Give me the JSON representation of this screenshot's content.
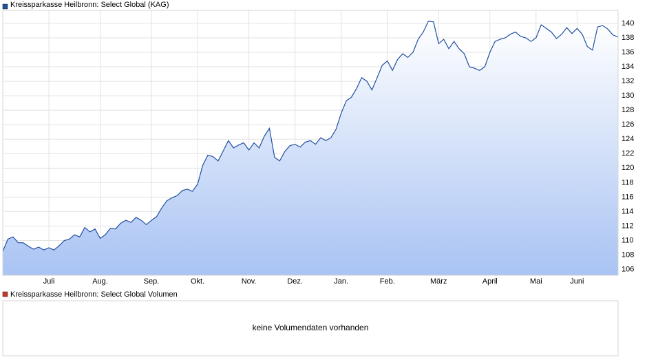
{
  "chart_data": [
    {
      "type": "line",
      "legend": "Kreissparkasse Heilbronn: Select Global (KAG)",
      "categories": [
        null,
        null,
        null,
        null,
        null,
        null,
        null,
        null,
        null,
        "Juli",
        null,
        null,
        null,
        null,
        null,
        null,
        null,
        null,
        null,
        "Aug.",
        null,
        null,
        null,
        null,
        null,
        null,
        null,
        null,
        null,
        "Sep.",
        null,
        null,
        null,
        null,
        null,
        null,
        null,
        null,
        "Okt.",
        null,
        null,
        null,
        null,
        null,
        null,
        null,
        null,
        null,
        "Nov.",
        null,
        null,
        null,
        null,
        null,
        null,
        null,
        null,
        "Dez.",
        null,
        null,
        null,
        null,
        null,
        null,
        null,
        null,
        "Jan.",
        null,
        null,
        null,
        null,
        null,
        null,
        null,
        null,
        "Feb.",
        null,
        null,
        null,
        null,
        null,
        null,
        null,
        null,
        null,
        "März",
        null,
        null,
        null,
        null,
        null,
        null,
        null,
        null,
        null,
        "April",
        null,
        null,
        null,
        null,
        null,
        null,
        null,
        null,
        "Mai",
        null,
        null,
        null,
        null,
        null,
        null,
        null,
        "Juni",
        null,
        null,
        null,
        null,
        null,
        null,
        null,
        null
      ],
      "series": [
        {
          "name": "Kreissparkasse Heilbronn: Select Global (KAG)",
          "color": "#1f4fa0",
          "values": [
            108.5,
            110.2,
            110.5,
            109.7,
            109.7,
            109.2,
            108.8,
            109.1,
            108.7,
            109.0,
            108.7,
            109.3,
            110.0,
            110.2,
            110.8,
            110.5,
            111.8,
            111.2,
            111.6,
            110.3,
            110.8,
            111.7,
            111.6,
            112.4,
            112.8,
            112.5,
            113.2,
            112.8,
            112.2,
            112.8,
            113.3,
            114.5,
            115.5,
            115.9,
            116.2,
            116.9,
            117.1,
            116.8,
            117.8,
            120.4,
            121.8,
            121.6,
            121.0,
            122.4,
            123.8,
            122.8,
            123.2,
            123.5,
            122.5,
            123.5,
            122.8,
            124.4,
            125.5,
            121.5,
            121.0,
            122.3,
            123.1,
            123.3,
            122.9,
            123.6,
            123.8,
            123.3,
            124.2,
            123.8,
            124.2,
            125.4,
            127.6,
            129.3,
            129.8,
            131.0,
            132.5,
            132.0,
            130.8,
            132.5,
            134.2,
            134.8,
            133.5,
            135.0,
            135.8,
            135.3,
            136.0,
            137.8,
            138.8,
            140.3,
            140.2,
            137.2,
            137.8,
            136.5,
            137.5,
            136.5,
            135.8,
            134.0,
            133.8,
            133.5,
            134.0,
            136.0,
            137.5,
            137.8,
            138.0,
            138.5,
            138.8,
            138.2,
            138.0,
            137.5,
            138.0,
            139.8,
            139.3,
            138.8,
            137.9,
            138.5,
            139.4,
            138.6,
            139.3,
            138.5,
            136.8,
            136.3,
            139.5,
            139.7,
            139.2,
            138.4,
            138.1
          ]
        }
      ],
      "ylim": [
        105.2,
        141.8
      ],
      "yticks": [
        106,
        108,
        110,
        112,
        114,
        116,
        118,
        120,
        122,
        124,
        126,
        128,
        130,
        132,
        134,
        136,
        138,
        140
      ],
      "grid": true
    },
    {
      "type": "empty",
      "legend": "Kreissparkasse Heilbronn: Select Global Volumen",
      "color": "#c0392b",
      "message": "keine Volumendaten vorhanden"
    }
  ]
}
